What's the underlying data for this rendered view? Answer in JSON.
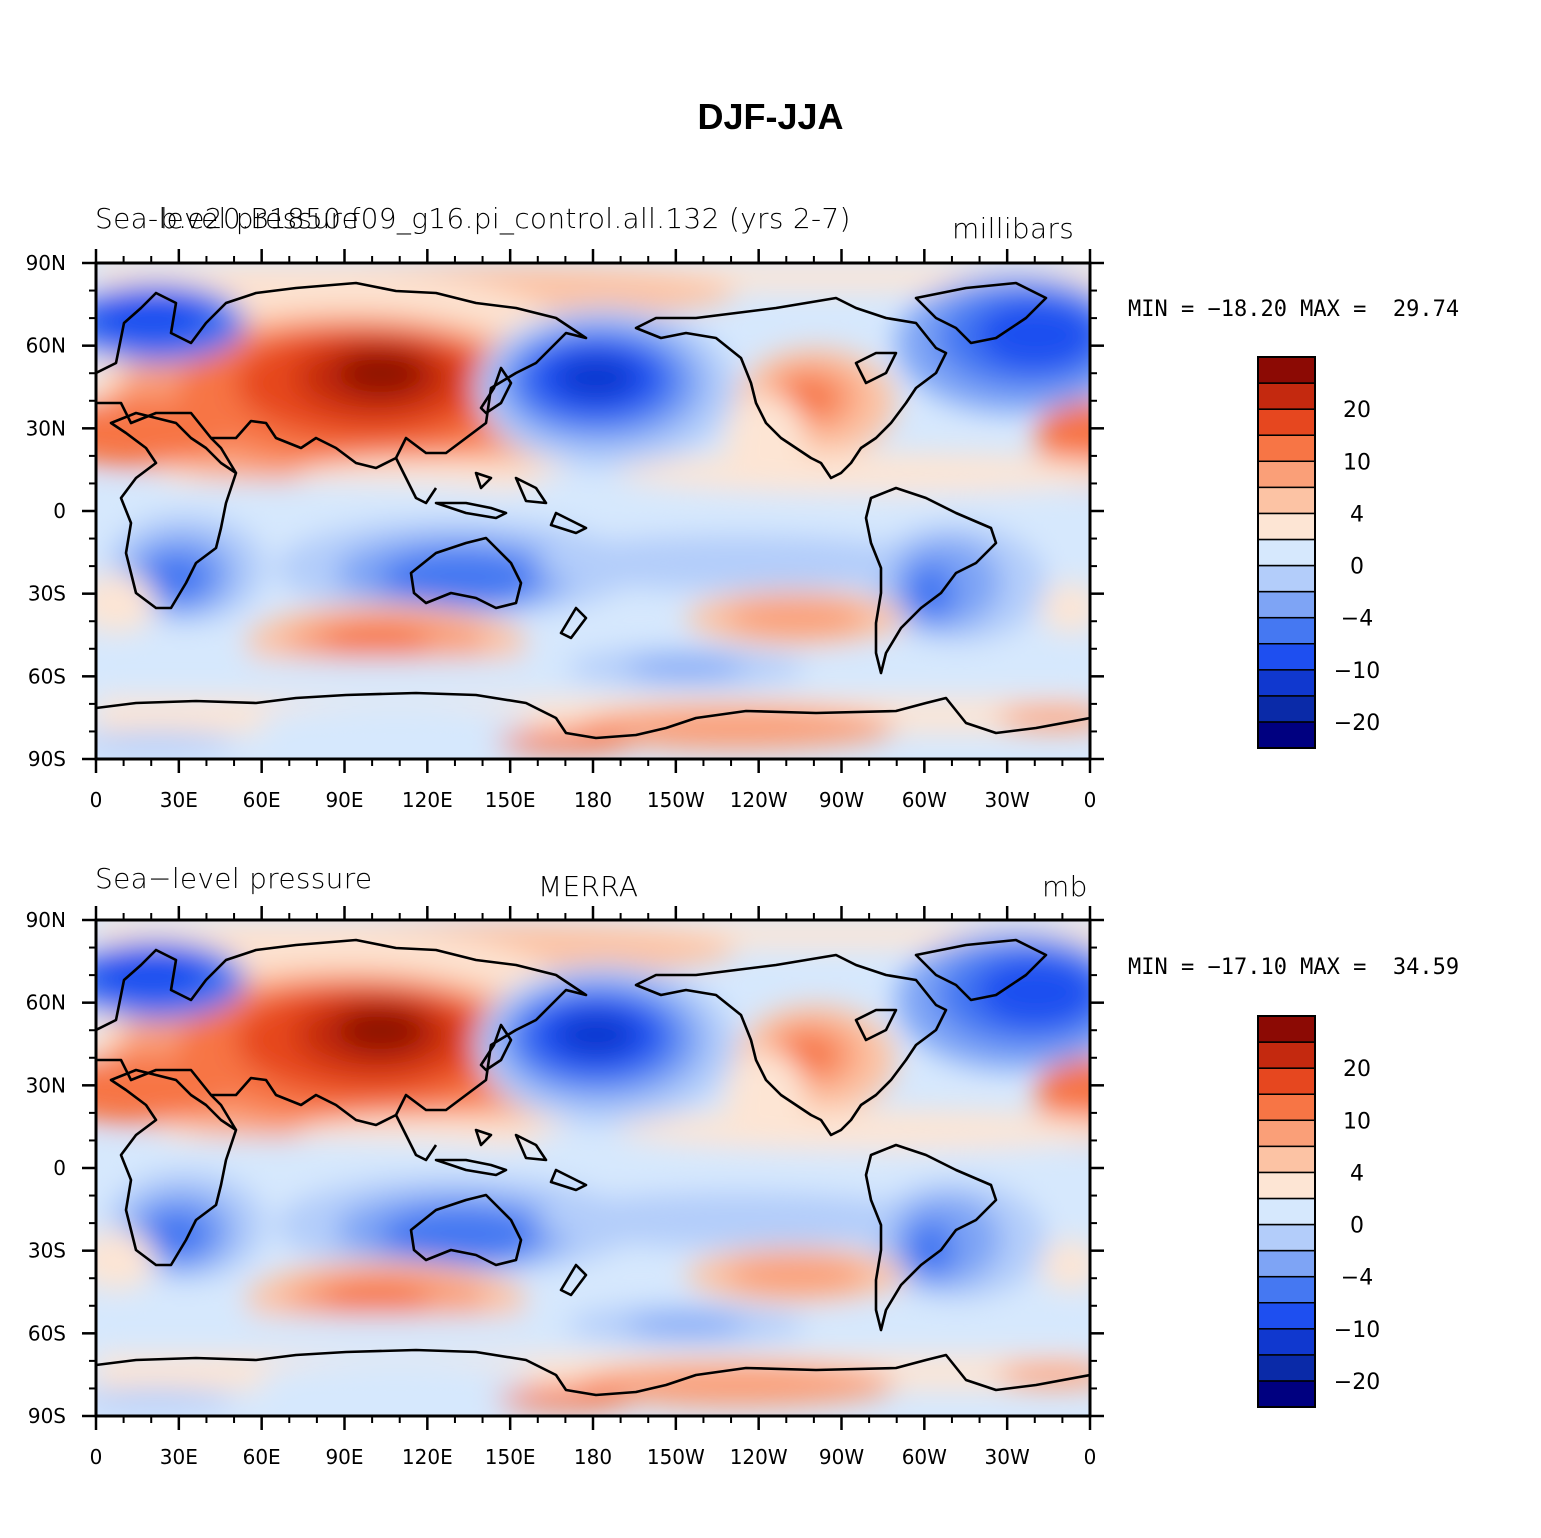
{
  "title": "DJF-JJA",
  "chart_data": [
    {
      "type": "heatmap",
      "title_left": "Sea-level pressure",
      "title_center": "b.e20.B1850.f09_g16.pi_control.all.132 (yrs 2-7)",
      "title_right": "millibars",
      "min_max": "MIN = −18.20 MAX =  29.74",
      "min": -18.2,
      "max": 29.74,
      "xticks": [
        "0",
        "30E",
        "60E",
        "90E",
        "120E",
        "150E",
        "180",
        "150W",
        "120W",
        "90W",
        "60W",
        "30W",
        "0"
      ],
      "yticks": [
        "90N",
        "60N",
        "30N",
        "0",
        "30S",
        "60S",
        "90S"
      ],
      "colorbar_labels": [
        "20",
        "10",
        "4",
        "0",
        "−4",
        "−10",
        "−20"
      ]
    },
    {
      "type": "heatmap",
      "title_left": "Sea−level pressure",
      "title_center": "MERRA",
      "title_right": "mb",
      "min_max": "MIN = −17.10 MAX =  34.59",
      "min": -17.1,
      "max": 34.59,
      "xticks": [
        "0",
        "30E",
        "60E",
        "90E",
        "120E",
        "150E",
        "180",
        "150W",
        "120W",
        "90W",
        "60W",
        "30W",
        "0"
      ],
      "yticks": [
        "90N",
        "60N",
        "30N",
        "0",
        "30S",
        "60S",
        "90S"
      ],
      "colorbar_labels": [
        "20",
        "10",
        "4",
        "0",
        "−4",
        "−10",
        "−20"
      ]
    }
  ],
  "colors": {
    "levels": [
      "#000080",
      "#0a2aa8",
      "#1038cf",
      "#1e4ff0",
      "#4578f2",
      "#7ea4f5",
      "#b3cdfa",
      "#d6e8fd",
      "#fde5d4",
      "#fcc3a4",
      "#fa9f78",
      "#f77545",
      "#e6471f",
      "#c4290f",
      "#8c0a04"
    ]
  }
}
